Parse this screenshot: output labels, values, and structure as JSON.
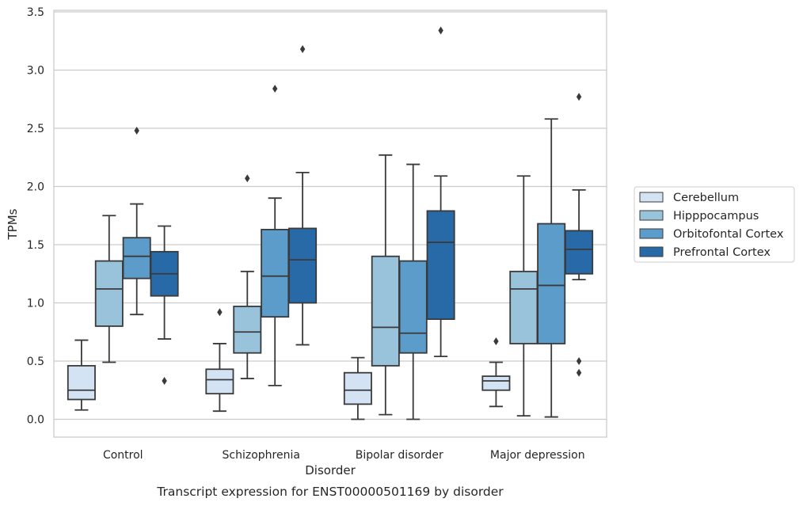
{
  "chart_data": {
    "type": "box",
    "title": "",
    "caption": "Transcript expression for ENST00000501169 by disorder",
    "xlabel": "Disorder",
    "ylabel": "TPMs",
    "ylim": [
      -0.16,
      3.52
    ],
    "yticks": [
      "0.0",
      "0.5",
      "1.0",
      "1.5",
      "2.0",
      "2.5",
      "3.0",
      "3.5"
    ],
    "grid": true,
    "legend_position": "right",
    "categories": [
      "Control",
      "Schizophrenia",
      "Bipolar disorder",
      "Major depression"
    ],
    "series": [
      {
        "name": "Cerebellum",
        "color": "#d4e3f3",
        "boxes": [
          {
            "whislo": 0.08,
            "q1": 0.17,
            "med": 0.25,
            "q3": 0.46,
            "whishi": 0.68,
            "fliers": []
          },
          {
            "whislo": 0.07,
            "q1": 0.22,
            "med": 0.34,
            "q3": 0.43,
            "whishi": 0.65,
            "fliers": [
              0.92
            ]
          },
          {
            "whislo": 0.0,
            "q1": 0.13,
            "med": 0.25,
            "q3": 0.4,
            "whishi": 0.53,
            "fliers": []
          },
          {
            "whislo": 0.11,
            "q1": 0.25,
            "med": 0.33,
            "q3": 0.37,
            "whishi": 0.49,
            "fliers": [
              0.67
            ]
          }
        ]
      },
      {
        "name": "Hipppocampus",
        "color": "#98c3db",
        "boxes": [
          {
            "whislo": 0.49,
            "q1": 0.8,
            "med": 1.12,
            "q3": 1.36,
            "whishi": 1.75,
            "fliers": []
          },
          {
            "whislo": 0.35,
            "q1": 0.57,
            "med": 0.75,
            "q3": 0.97,
            "whishi": 1.27,
            "fliers": [
              2.07
            ]
          },
          {
            "whislo": 0.04,
            "q1": 0.46,
            "med": 0.79,
            "q3": 1.4,
            "whishi": 2.27,
            "fliers": []
          },
          {
            "whislo": 0.03,
            "q1": 0.65,
            "med": 1.12,
            "q3": 1.27,
            "whishi": 2.09,
            "fliers": []
          }
        ]
      },
      {
        "name": "Orbitofontal Cortex",
        "color": "#5b9ccb",
        "boxes": [
          {
            "whislo": 0.9,
            "q1": 1.21,
            "med": 1.4,
            "q3": 1.56,
            "whishi": 1.85,
            "fliers": [
              2.48
            ]
          },
          {
            "whislo": 0.29,
            "q1": 0.88,
            "med": 1.23,
            "q3": 1.63,
            "whishi": 1.9,
            "fliers": [
              2.84
            ]
          },
          {
            "whislo": 0.0,
            "q1": 0.57,
            "med": 0.74,
            "q3": 1.36,
            "whishi": 2.19,
            "fliers": []
          },
          {
            "whislo": 0.02,
            "q1": 0.65,
            "med": 1.15,
            "q3": 1.68,
            "whishi": 2.58,
            "fliers": []
          }
        ]
      },
      {
        "name": "Prefrontal Cortex",
        "color": "#2869a8",
        "boxes": [
          {
            "whislo": 0.69,
            "q1": 1.06,
            "med": 1.25,
            "q3": 1.44,
            "whishi": 1.66,
            "fliers": [
              0.33
            ]
          },
          {
            "whislo": 0.64,
            "q1": 1.0,
            "med": 1.37,
            "q3": 1.64,
            "whishi": 2.12,
            "fliers": [
              3.18
            ]
          },
          {
            "whislo": 0.54,
            "q1": 0.86,
            "med": 1.52,
            "q3": 1.79,
            "whishi": 2.09,
            "fliers": [
              3.34
            ]
          },
          {
            "whislo": 1.2,
            "q1": 1.25,
            "med": 1.46,
            "q3": 1.62,
            "whishi": 1.97,
            "fliers": [
              2.77,
              0.5,
              0.4
            ]
          }
        ]
      }
    ]
  }
}
